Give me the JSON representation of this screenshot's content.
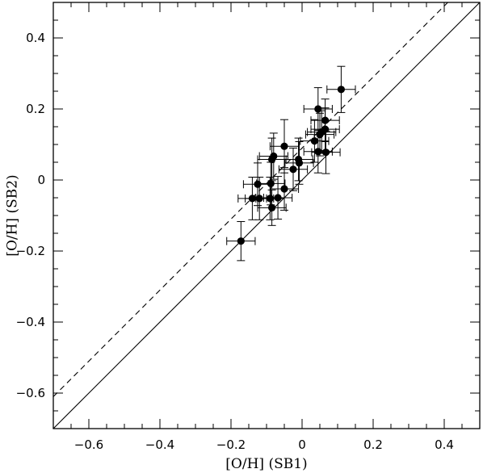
{
  "chart_data": {
    "type": "scatter",
    "title": "",
    "xlabel": "[O/H] (SB1)",
    "ylabel": "[O/H] (SB2)",
    "xlim": [
      -0.7,
      0.5
    ],
    "ylim": [
      -0.7,
      0.5
    ],
    "xticks": [
      -0.6,
      -0.4,
      -0.2,
      0,
      0.2,
      0.4
    ],
    "xtick_labels": [
      "−0.6",
      "−0.4",
      "−0.2",
      "0",
      "0.2",
      "0.4"
    ],
    "yticks": [
      -0.6,
      -0.4,
      -0.2,
      0,
      0.2,
      0.4
    ],
    "ytick_labels": [
      "−0.6",
      "−0.4",
      "−0.2",
      "0",
      "0.2",
      "0.4"
    ],
    "grid": false,
    "reference_lines": [
      {
        "style": "solid",
        "slope": 1,
        "intercept": 0
      },
      {
        "style": "dashed",
        "slope": 1,
        "intercept": 0.09
      }
    ],
    "points": [
      {
        "x": 0.11,
        "y": 0.255,
        "xerr": 0.04,
        "yerr": 0.065
      },
      {
        "x": 0.045,
        "y": 0.2,
        "xerr": 0.04,
        "yerr": 0.06
      },
      {
        "x": 0.065,
        "y": 0.168,
        "xerr": 0.04,
        "yerr": 0.06
      },
      {
        "x": 0.065,
        "y": 0.143,
        "xerr": 0.04,
        "yerr": 0.06
      },
      {
        "x": 0.055,
        "y": 0.135,
        "xerr": 0.04,
        "yerr": 0.06
      },
      {
        "x": 0.05,
        "y": 0.128,
        "xerr": 0.04,
        "yerr": 0.06
      },
      {
        "x": 0.035,
        "y": 0.11,
        "xerr": 0.04,
        "yerr": 0.06
      },
      {
        "x": -0.05,
        "y": 0.095,
        "xerr": 0.04,
        "yerr": 0.075
      },
      {
        "x": 0.045,
        "y": 0.08,
        "xerr": 0.04,
        "yerr": 0.06
      },
      {
        "x": 0.067,
        "y": 0.078,
        "xerr": 0.04,
        "yerr": 0.06
      },
      {
        "x": -0.08,
        "y": 0.067,
        "xerr": 0.04,
        "yerr": 0.065
      },
      {
        "x": -0.085,
        "y": 0.058,
        "xerr": 0.04,
        "yerr": 0.06
      },
      {
        "x": -0.01,
        "y": 0.058,
        "xerr": 0.04,
        "yerr": 0.06
      },
      {
        "x": -0.008,
        "y": 0.048,
        "xerr": 0.04,
        "yerr": 0.06
      },
      {
        "x": -0.025,
        "y": 0.03,
        "xerr": 0.04,
        "yerr": 0.06
      },
      {
        "x": -0.05,
        "y": -0.025,
        "xerr": 0.04,
        "yerr": 0.06
      },
      {
        "x": -0.125,
        "y": -0.012,
        "xerr": 0.04,
        "yerr": 0.06
      },
      {
        "x": -0.088,
        "y": -0.01,
        "xerr": 0.04,
        "yerr": 0.06
      },
      {
        "x": -0.14,
        "y": -0.052,
        "xerr": 0.04,
        "yerr": 0.06
      },
      {
        "x": -0.12,
        "y": -0.052,
        "xerr": 0.04,
        "yerr": 0.06
      },
      {
        "x": -0.09,
        "y": -0.052,
        "xerr": 0.04,
        "yerr": 0.06
      },
      {
        "x": -0.068,
        "y": -0.05,
        "xerr": 0.04,
        "yerr": 0.06
      },
      {
        "x": -0.085,
        "y": -0.078,
        "xerr": 0.04,
        "yerr": 0.05
      },
      {
        "x": -0.172,
        "y": -0.172,
        "xerr": 0.04,
        "yerr": 0.055
      }
    ]
  }
}
